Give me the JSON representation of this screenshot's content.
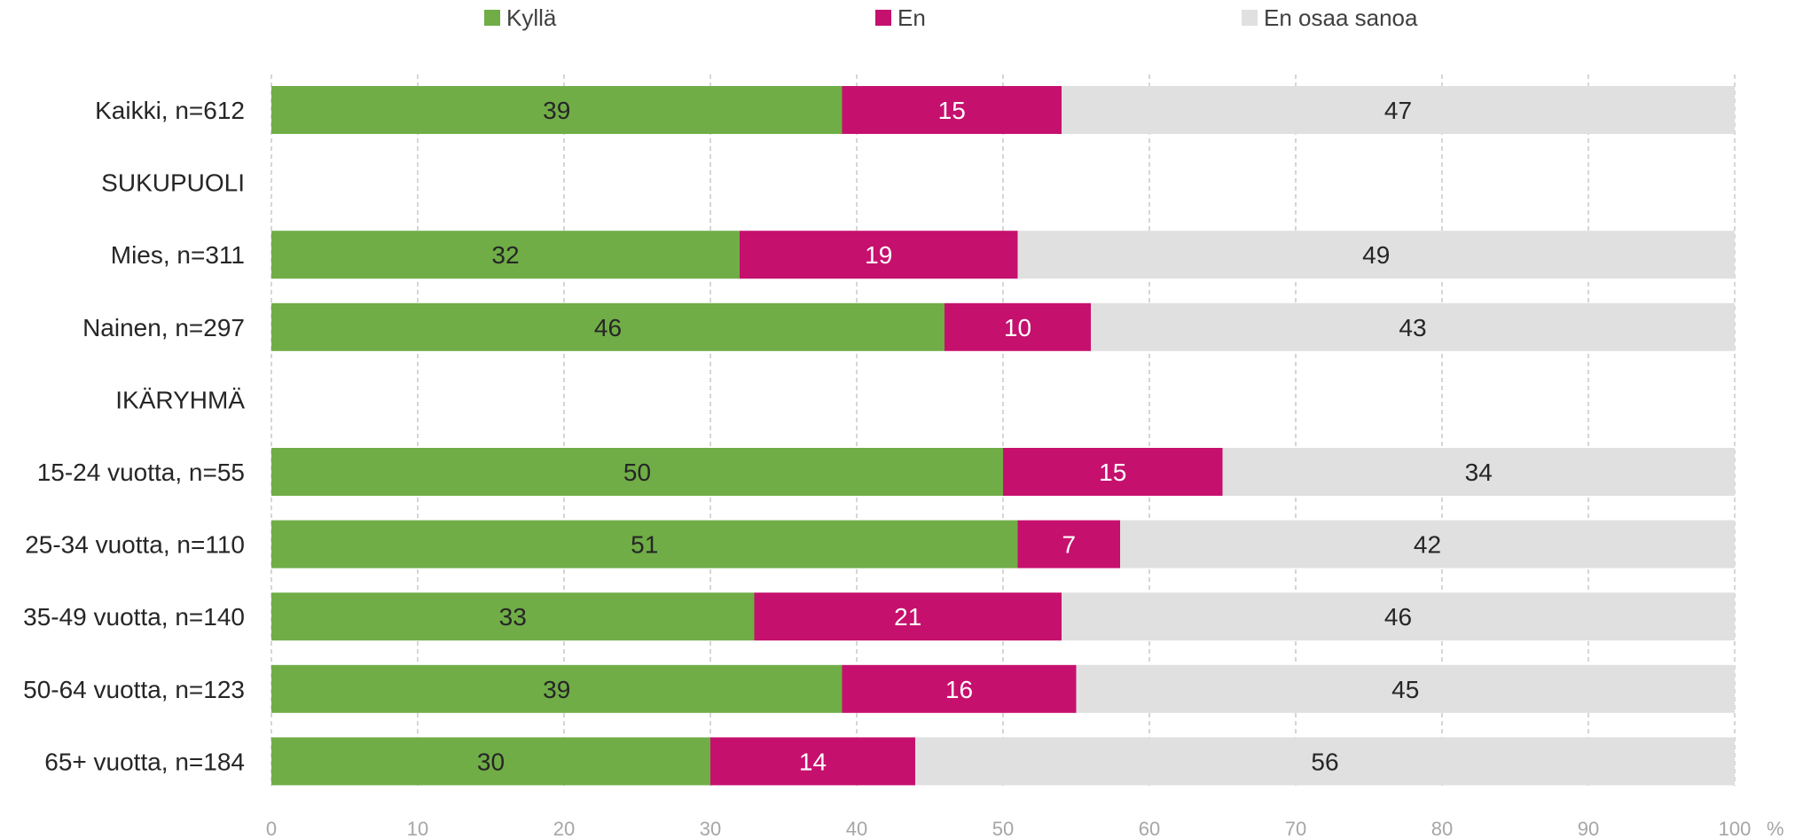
{
  "chart_data": {
    "type": "bar",
    "orientation": "horizontal",
    "stacked": true,
    "categories": [
      "Kaikki, n=612",
      "SUKUPUOLI",
      "Mies, n=311",
      "Nainen, n=297",
      "IKÄRYHMÄ",
      "15-24 vuotta, n=55",
      "25-34 vuotta, n=110",
      "35-49 vuotta, n=140",
      "50-64 vuotta, n=123",
      "65+ vuotta, n=184"
    ],
    "series": [
      {
        "name": "Kyllä",
        "color": "#70ad47",
        "label_color": "#262626",
        "values": [
          39,
          null,
          32,
          46,
          null,
          50,
          51,
          33,
          39,
          30
        ]
      },
      {
        "name": "En",
        "color": "#c6106e",
        "label_color": "#ffffff",
        "values": [
          15,
          null,
          19,
          10,
          null,
          15,
          7,
          21,
          16,
          14
        ]
      },
      {
        "name": "En osaa sanoa",
        "color": "#e0e0e0",
        "label_color": "#262626",
        "values": [
          47,
          null,
          49,
          43,
          null,
          34,
          42,
          46,
          45,
          56
        ]
      }
    ],
    "xlim": [
      0,
      100
    ],
    "xticks": [
      0,
      10,
      20,
      30,
      40,
      50,
      60,
      70,
      80,
      90,
      100
    ],
    "xunit": "%",
    "grid": "vertical dashed",
    "legend": "top"
  }
}
